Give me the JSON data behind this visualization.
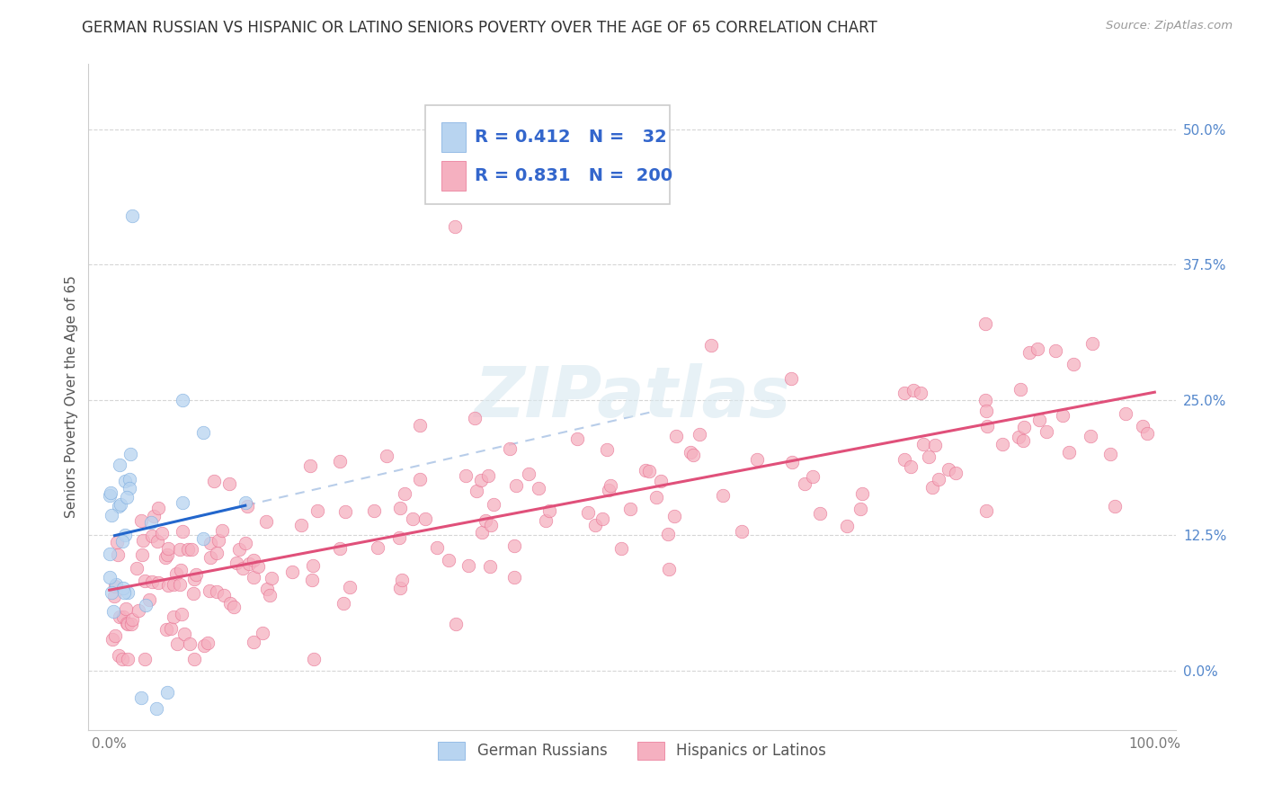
{
  "title": "GERMAN RUSSIAN VS HISPANIC OR LATINO SENIORS POVERTY OVER THE AGE OF 65 CORRELATION CHART",
  "source": "Source: ZipAtlas.com",
  "ylabel": "Seniors Poverty Over the Age of 65",
  "xlim": [
    -0.02,
    1.02
  ],
  "ylim": [
    -0.055,
    0.56
  ],
  "xticks": [
    0.0,
    1.0
  ],
  "xtick_labels": [
    "0.0%",
    "100.0%"
  ],
  "yticks": [
    0.0,
    0.125,
    0.25,
    0.375,
    0.5
  ],
  "ytick_labels": [
    "0.0%",
    "12.5%",
    "25.0%",
    "37.5%",
    "50.0%"
  ],
  "series1_name": "German Russians",
  "series1_R": 0.412,
  "series1_N": 32,
  "series1_color": "#b8d4f0",
  "series1_edge_color": "#7aabdf",
  "series1_trend_color": "#2266cc",
  "series2_name": "Hispanics or Latinos",
  "series2_R": 0.831,
  "series2_N": 200,
  "series2_color": "#f5b0c0",
  "series2_edge_color": "#e87090",
  "series2_trend_color": "#e0507a",
  "background_color": "#ffffff",
  "grid_color": "#cccccc",
  "title_fontsize": 12,
  "axis_fontsize": 11,
  "tick_fontsize": 11,
  "legend_fontsize": 14
}
